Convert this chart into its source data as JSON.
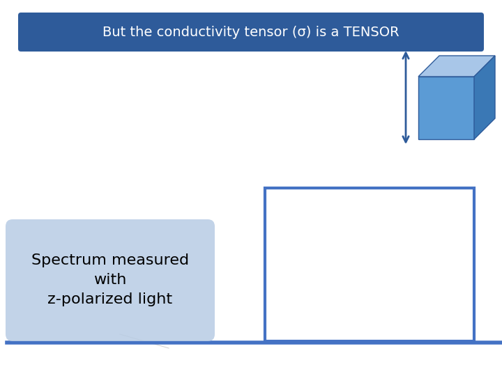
{
  "title_text": "But the conductivity tensor (σ) is a TENSOR",
  "title_box_color": "#2E5B9A",
  "title_text_color": "#FFFFFF",
  "title_fontsize": 14,
  "bg_color": "#FFFFFF",
  "label_text": "Spectrum measured\nwith\nz-polarized light",
  "label_box_color_top": "#B8CCE4",
  "label_box_color_bottom": "#7FA8D4",
  "label_fontsize": 16,
  "cube_face_front": "#5B9BD5",
  "cube_face_top": "#A8C6E8",
  "cube_face_right": "#3A78B5",
  "arrow_color": "#2E5B9A",
  "rect_border_color": "#4472C4",
  "bottom_line_color": "#4472C4"
}
